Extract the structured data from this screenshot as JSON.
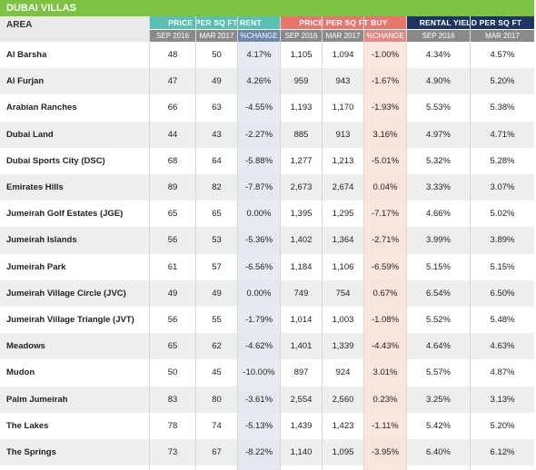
{
  "title": "DUBAI VILLAS",
  "header": {
    "area": "AREA",
    "groups": [
      {
        "label": "PRICE PER SQ FT RENT",
        "color": "#59c0b2"
      },
      {
        "label": "PRICE PER SQ FT BUY",
        "color": "#e8756e"
      },
      {
        "label": "RENTAL YIELD PER SQ FT",
        "color": "#1e3461"
      }
    ],
    "subheaders": [
      "SEP 2016",
      "MAR 2017",
      "%CHANGE",
      "SEP 2016",
      "MAR 2017",
      "%CHANGE",
      "SEP 2016",
      "MAR 2017"
    ]
  },
  "rows": [
    {
      "area": "Al Barsha",
      "values": [
        "48",
        "50",
        "4.17%",
        "1,105",
        "1,094",
        "-1.00%",
        "4.34%",
        "4.57%"
      ]
    },
    {
      "area": "Al Furjan",
      "values": [
        "47",
        "49",
        "4.26%",
        "959",
        "943",
        "-1.67%",
        "4.90%",
        "5.20%"
      ]
    },
    {
      "area": "Arabian Ranches",
      "values": [
        "66",
        "63",
        "-4.55%",
        "1,193",
        "1,170",
        "-1.93%",
        "5.53%",
        "5.38%"
      ]
    },
    {
      "area": "Dubai Land",
      "values": [
        "44",
        "43",
        "-2.27%",
        "885",
        "913",
        "3.16%",
        "4.97%",
        "4.71%"
      ]
    },
    {
      "area": "Dubai Sports City (DSC)",
      "values": [
        "68",
        "64",
        "-5.88%",
        "1,277",
        "1,213",
        "-5.01%",
        "5.32%",
        "5.28%"
      ]
    },
    {
      "area": "Emirates Hills",
      "values": [
        "89",
        "82",
        "-7.87%",
        "2,673",
        "2,674",
        "0.04%",
        "3.33%",
        "3.07%"
      ]
    },
    {
      "area": "Jumeirah Golf Estates (JGE)",
      "values": [
        "65",
        "65",
        "0.00%",
        "1,395",
        "1,295",
        "-7.17%",
        "4.66%",
        "5.02%"
      ]
    },
    {
      "area": "Jumeirah Islands",
      "values": [
        "56",
        "53",
        "-5.36%",
        "1,402",
        "1,364",
        "-2.71%",
        "3.99%",
        "3.89%"
      ]
    },
    {
      "area": "Jumeirah Park",
      "values": [
        "61",
        "57",
        "-6.56%",
        "1,184",
        "1,106",
        "-6.59%",
        "5.15%",
        "5.15%"
      ]
    },
    {
      "area": "Jumeirah Village Circle (JVC)",
      "values": [
        "49",
        "49",
        "0.00%",
        "749",
        "754",
        "0.67%",
        "6.54%",
        "6.50%"
      ]
    },
    {
      "area": "Jumeirah Village Triangle (JVT)",
      "values": [
        "56",
        "55",
        "-1.79%",
        "1,014",
        "1,003",
        "-1.08%",
        "5.52%",
        "5.48%"
      ]
    },
    {
      "area": "Meadows",
      "values": [
        "65",
        "62",
        "-4.62%",
        "1,401",
        "1,339",
        "-4.43%",
        "4.64%",
        "4.63%"
      ]
    },
    {
      "area": "Mudon",
      "values": [
        "50",
        "45",
        "-10.00%",
        "897",
        "924",
        "3.01%",
        "5.57%",
        "4.87%"
      ]
    },
    {
      "area": "Palm Jumeirah",
      "values": [
        "83",
        "80",
        "-3.61%",
        "2,554",
        "2,560",
        "0.23%",
        "3.25%",
        "3.13%"
      ]
    },
    {
      "area": "The Lakes",
      "values": [
        "78",
        "74",
        "-5.13%",
        "1,439",
        "1,423",
        "-1.11%",
        "5.42%",
        "5.20%"
      ]
    },
    {
      "area": "The Springs",
      "values": [
        "73",
        "67",
        "-8.22%",
        "1,140",
        "1,095",
        "-3.95%",
        "6.40%",
        "6.12%"
      ]
    }
  ]
}
